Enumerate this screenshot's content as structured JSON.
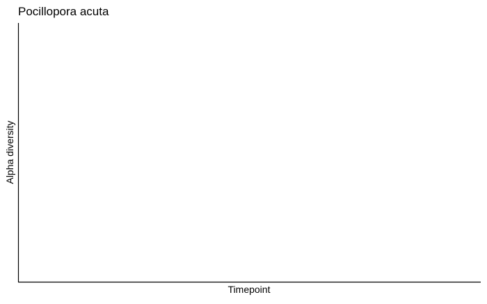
{
  "chart_data": {
    "type": "scatter",
    "title": "Pocillopora acuta",
    "xlabel": "Timepoint",
    "ylabel": "Alpha diversity",
    "series": [],
    "grid": false,
    "legend": "none",
    "colors": {
      "axis": "#000000",
      "background": "#ffffff"
    }
  }
}
